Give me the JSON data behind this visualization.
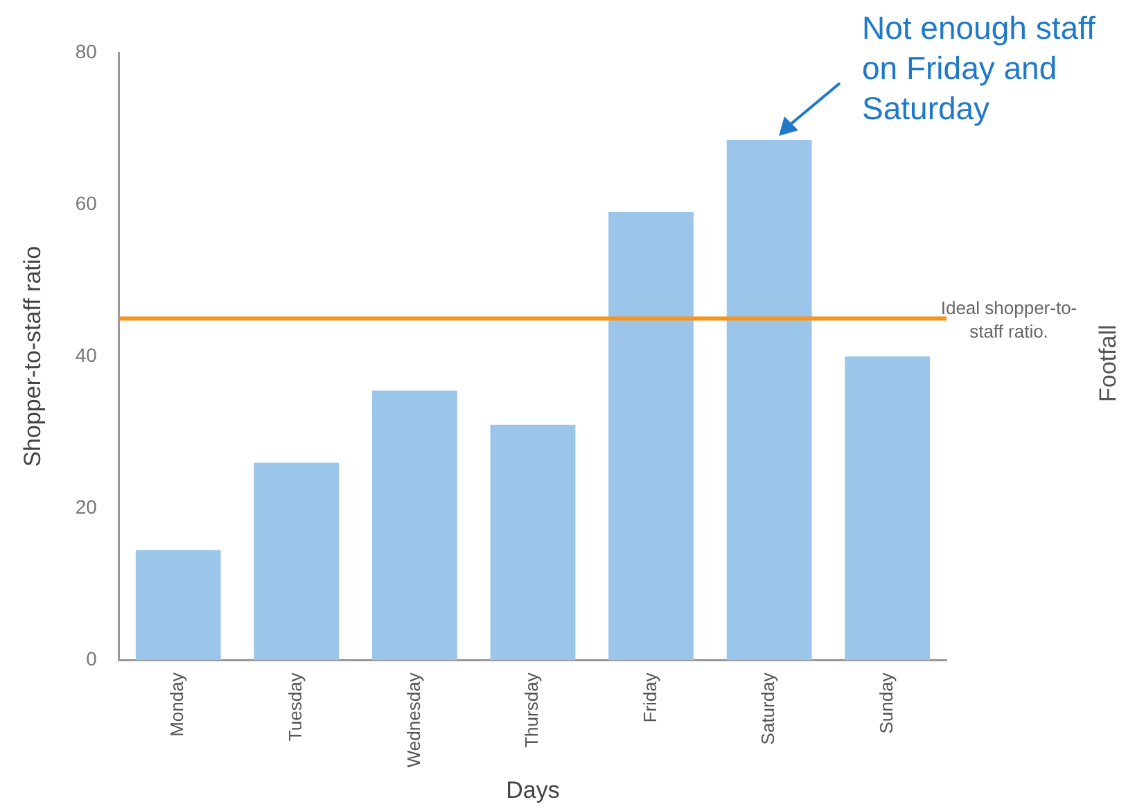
{
  "chart_data": {
    "type": "bar",
    "xlabel": "Days",
    "ylabel": "Shopper-to-staff ratio",
    "categories": [
      "Monday",
      "Tuesday",
      "Wednesday",
      "Thursday",
      "Friday",
      "Saturday",
      "Sunday"
    ],
    "values": [
      14.5,
      26,
      35.5,
      31,
      59,
      68.5,
      40
    ],
    "color": "#9cc5ea",
    "ylim": [
      0,
      80
    ],
    "yticks": [
      0,
      20,
      40,
      60,
      80
    ],
    "grid": false,
    "ref_lines": [
      {
        "axis": "y",
        "value": 45,
        "label": "Ideal shopper-to-staff ratio.",
        "color": "#f7941d"
      }
    ],
    "annotations": [
      "Not enough staff on Friday and Saturday",
      "Footfall"
    ]
  }
}
